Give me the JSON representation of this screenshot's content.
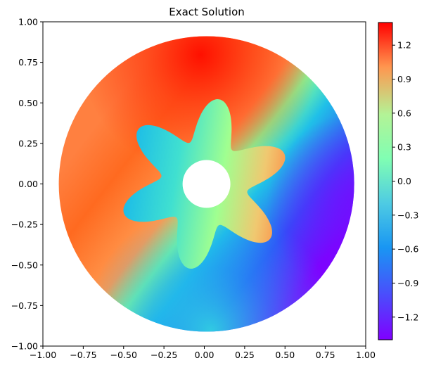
{
  "chart_data": {
    "type": "heatmap",
    "title": "Exact Solution",
    "xlabel": "",
    "ylabel": "",
    "xlim": [
      -1.0,
      1.0
    ],
    "ylim": [
      -1.0,
      1.0
    ],
    "x_ticks": [
      "−1.00",
      "−0.75",
      "−0.50",
      "−0.25",
      "0.00",
      "0.25",
      "0.50",
      "0.75",
      "1.00"
    ],
    "y_ticks": [
      "1.00",
      "0.75",
      "0.50",
      "0.25",
      "0.00",
      "−0.25",
      "−0.50",
      "−0.75",
      "−1.00"
    ],
    "x_tick_values": [
      -1.0,
      -0.75,
      -0.5,
      -0.25,
      0.0,
      0.25,
      0.5,
      0.75,
      1.0
    ],
    "y_tick_values": [
      1.0,
      0.75,
      0.5,
      0.25,
      0.0,
      -0.25,
      -0.5,
      -0.75,
      -1.0
    ],
    "colorbar": {
      "vmin": -1.4,
      "vmax": 1.4,
      "colormap": "rainbow",
      "tick_labels": [
        "1.2",
        "0.9",
        "0.6",
        "0.3",
        "0.0",
        "−0.3",
        "−0.6",
        "−0.9",
        "−1.2"
      ],
      "tick_values": [
        1.2,
        0.9,
        0.6,
        0.3,
        0.0,
        -0.3,
        -0.6,
        -0.9,
        -1.2
      ]
    },
    "domain": {
      "outer_radius": 0.9,
      "hole_radius": 0.15,
      "inner_star_boundary": {
        "base_radius": 0.4,
        "amplitude": 0.13,
        "petals": 6
      }
    },
    "grid": false,
    "legend": "none"
  }
}
